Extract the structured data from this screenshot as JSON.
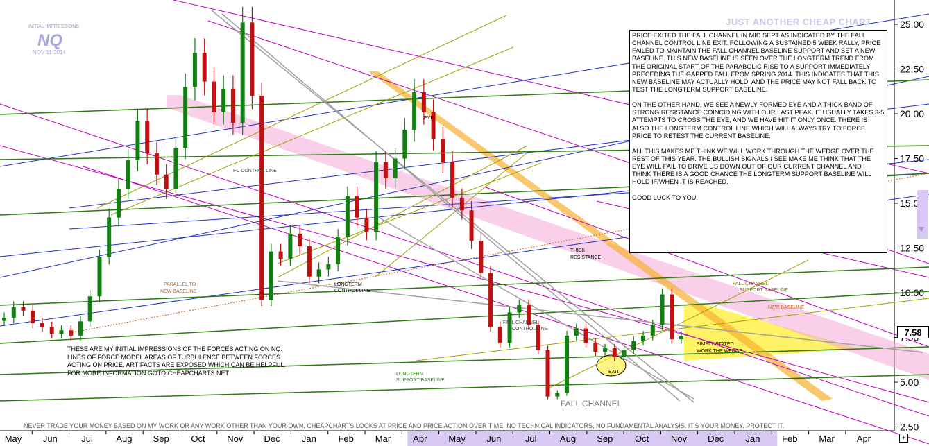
{
  "chart_data": {
    "type": "candlestick",
    "yaxis": {
      "ticks": [
        "25.00",
        "22.50",
        "20.00",
        "17.50",
        "15.00",
        "12.50",
        "10.00",
        "7.50",
        "5.00",
        "2.50"
      ],
      "ylim": [
        2.5,
        26
      ],
      "position": "right"
    },
    "xaxis": {
      "months": [
        "May",
        "Jun",
        "Jul",
        "Aug",
        "Sep",
        "Oct",
        "Nov",
        "Dec",
        "Jan",
        "Feb",
        "Mar",
        "Apr",
        "May",
        "Jun",
        "Jul",
        "Aug",
        "Sep",
        "Oct",
        "Nov",
        "Dec",
        "Jan",
        "Feb",
        "Mar",
        "Apr"
      ],
      "highlight": {
        "from": "Apr",
        "to": "Feb",
        "color": "#d8c8f4"
      }
    },
    "last_price": "7.58",
    "closes": [
      8.6,
      9.2,
      9.0,
      8.3,
      8.1,
      7.7,
      7.9,
      7.6,
      8.4,
      9.8,
      12.0,
      14.2,
      15.8,
      17.4,
      19.6,
      17.8,
      16.6,
      15.8,
      18.1,
      21.5,
      23.4,
      21.8,
      20.1,
      21.4,
      19.5,
      25.1,
      21.0,
      9.6,
      12.3,
      11.9,
      13.3,
      12.6,
      10.9,
      11.3,
      11.6,
      13.1,
      15.4,
      14.2,
      13.4,
      17.3,
      16.4,
      17.5,
      19.1,
      21.2,
      20.1,
      18.6,
      17.3,
      15.3,
      14.6,
      12.9,
      11.1,
      8.1,
      7.2,
      8.9,
      9.3,
      8.2,
      6.8,
      4.2,
      4.4,
      7.6,
      8.0,
      7.2,
      6.7,
      6.9,
      6.4,
      6.8,
      7.3,
      7.6,
      8.2,
      9.9,
      7.4,
      7.58
    ],
    "annotations": {
      "fc_control_line": "FC CONTROL LINE",
      "parallel_baseline": [
        "PARALLEL TO",
        "NEW BASELINE"
      ],
      "longterm_control_line": [
        "LONGTERM",
        "CONTROL LINE"
      ],
      "fall_channel_control_line": [
        "FALL CHANNEL",
        "CONTROL LINE"
      ],
      "eye": "EYE",
      "thick_resistance": [
        "THICK",
        "RESISTANCE"
      ],
      "fall_channel_support_baseline": [
        "FALL CHANNEL",
        "SUPPORT BASELINE"
      ],
      "new_baseline": "NEW BASELINE",
      "simply_stated": [
        "SIMPLY STATED",
        "WORK THE WEDGE"
      ],
      "exit": "EXIT",
      "longterm_support_baseline": [
        "LONGTERM",
        "SUPPORT BASELINE"
      ],
      "fall_channel": "FALL CHANNEL"
    }
  },
  "header": {
    "logo_caption": "INITIAL IMPRESSIONS",
    "logo_symbol": "NQ",
    "logo_date": "NOV 11 2014",
    "watermark": "JUST ANOTHER CHEAP CHART"
  },
  "commentary": "PRICE EXITED THE FALL CHANNEL IN MID SEPT AS INDICATED BY THE FALL CHANNEL CONTROL LINE EXIT. FOLLOWING A SUSTAINED 5 WEEK RALLY, PRICE FAILED TO MAINTAIN THE FALL CHANNEL BASELINE SUPPORT AND SET A NEW BASELINE. THIS NEW BASELINE IS SEEN OVER THE LONGTERM TREND FROM THE ORIGINAL START OF THE PARABOLIC RISE TO A SUPPORT IMMEDIATELY PRECEDING THE GAPPED FALL FROM SPRING 2014. THIS INDICATES THAT THIS NEW BASELINE MAY ACTUALLY HOLD, AND THE PRICE MAY NOT FALL BACK TO TEST THE LONGTERM SUPPORT BASELINE.\n\nON THE OTHER HAND, WE SEE A NEWLY FORMED EYE AND A THICK BAND OF STRONG RESISTANCE COINCIDING WITH OUR LAST PEAK. IT USUALLY TAKES 3-5 ATTEMPTS TO CROSS THE EYE, AND WE HAVE HIT IT ONLY ONCE. THERE IS ALSO THE LONGTERM CONTROL LINE WHICH WILL ALWAYS TRY TO FORCE PRICE TO RETEST THE CURRENT BASELINE.\n\nALL THIS MAKES ME THINK WE WILL WORK THROUGH THE WEDGE OVER THE REST OF THIS YEAR. THE BULLISH SIGNALS I SEE MAKE ME THINK THAT THE EYE WILL FAIL TO DRIVE US DOWN OUT OF OUR CURRENT CHANNEL AND I THINK THERE IS A GOOD CHANCE THE LONGTERM SUPPORT BASELINE WILL HOLD IF/WHEN IT IS REACHED.\n\nGOOD LUCK TO YOU.",
  "impressions": "THESE ARE MY INITIAL IMPRESSIONS OF THE FORCES ACTING ON NQ.\nLINES OF FORCE MODEL AREAS OF TURBULENCE BETWEEN FORCES\nACTING ON PRICE. ARTIFACTS ARE EXPOSED WHICH CAN BE HELPFUL.\nFOR MORE INFORMATION GOTO CHEAPCHARTS.NET",
  "disclaimer": "NEVER TRADE YOUR MONEY BASED ON MY WORK OR ANY WORK OTHER THAN YOUR OWN. CHEAPCHARTS LOOKS AT PRICE AND PRICE ACTION OVER TIME, NO TECHNICAL INDICATORS, NO FUNDAMENTAL ANALYSIS. IT'S YOUR MONEY. PROTECT IT.",
  "nav_button": "+",
  "scroll_arrow": "▼",
  "colors": {
    "resistance_band": "#f4a8d8",
    "eye_band": "#f6b030",
    "wedge": "#ffee30",
    "channel_lines": "#c000c0",
    "trend_lines": "#2030c0",
    "support_lines": "#2a7a10",
    "helper_lines": "#a0a000",
    "control_lines": "#a0a0a0"
  }
}
